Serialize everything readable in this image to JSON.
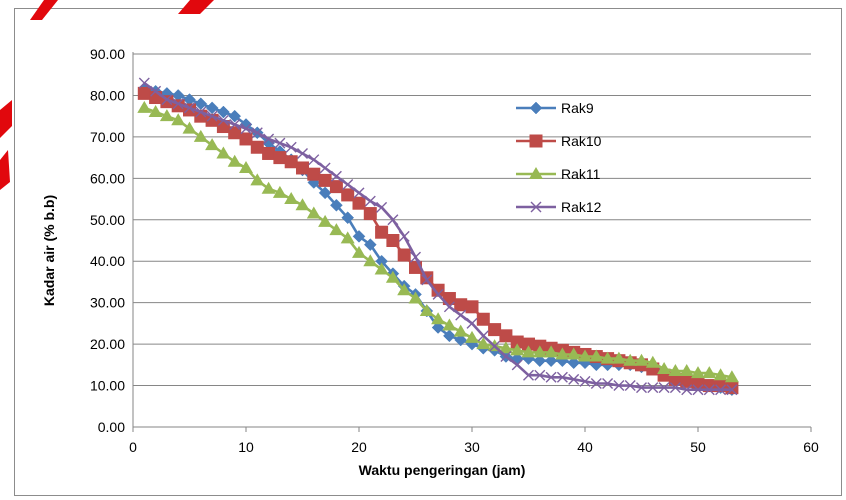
{
  "chart_data": {
    "type": "line",
    "xlabel": "Waktu pengeringan (jam)",
    "ylabel": "Kadar air (% b.b)",
    "xlim": [
      0,
      60
    ],
    "ylim": [
      0,
      90
    ],
    "x_ticks": [
      "0",
      "10",
      "20",
      "30",
      "40",
      "50",
      "60"
    ],
    "y_ticks": [
      "0.00",
      "10.00",
      "20.00",
      "30.00",
      "40.00",
      "50.00",
      "60.00",
      "70.00",
      "80.00",
      "90.00"
    ],
    "grid": "horizontal",
    "legend_position": "right",
    "series": [
      {
        "name": "Rak9",
        "color": "#4a7ebb",
        "marker": "diamond",
        "x": [
          1,
          2,
          3,
          4,
          5,
          6,
          7,
          8,
          9,
          10,
          11,
          12,
          13,
          14,
          15,
          16,
          17,
          18,
          19,
          20,
          21,
          22,
          23,
          24,
          25,
          26,
          27,
          28,
          29,
          30,
          31,
          32,
          33,
          34,
          35,
          36,
          37,
          38,
          39,
          40,
          41,
          42,
          43,
          44,
          45,
          46,
          47,
          48,
          49,
          50,
          51,
          52,
          53
        ],
        "y": [
          81.5,
          81,
          80.5,
          80,
          79,
          78,
          77,
          76,
          75,
          73,
          71,
          68.5,
          66.5,
          64.5,
          62,
          59,
          56.5,
          53.5,
          50.5,
          46,
          44,
          40,
          37,
          34,
          32,
          28,
          24,
          22,
          21,
          20,
          19,
          18.5,
          17,
          16.5,
          16.5,
          16,
          16,
          16,
          15.5,
          15.5,
          15,
          15,
          15,
          15,
          14.5,
          14.5,
          13.5,
          12.5,
          11,
          10.5,
          10,
          9.5,
          9
        ]
      },
      {
        "name": "Rak10",
        "color": "#be4b48",
        "marker": "square",
        "x": [
          1,
          2,
          3,
          4,
          5,
          6,
          7,
          8,
          9,
          10,
          11,
          12,
          13,
          14,
          15,
          16,
          17,
          18,
          19,
          20,
          21,
          22,
          23,
          24,
          25,
          26,
          27,
          28,
          29,
          30,
          31,
          32,
          33,
          34,
          35,
          36,
          37,
          38,
          39,
          40,
          41,
          42,
          43,
          44,
          45,
          46,
          47,
          48,
          49,
          50,
          51,
          52,
          53
        ],
        "y": [
          80.5,
          79.5,
          78.5,
          77.5,
          76.5,
          75,
          74,
          72.5,
          71,
          69.5,
          67.5,
          66,
          65,
          64,
          62.5,
          61,
          59.5,
          58,
          56,
          54,
          51.5,
          47,
          45,
          41.5,
          38.5,
          36,
          33,
          31,
          29.5,
          29,
          26,
          23.5,
          22,
          20.5,
          20,
          19.5,
          19,
          18.5,
          18,
          17.5,
          17,
          16.5,
          16,
          15.5,
          15,
          14,
          12.5,
          11.5,
          11,
          10.5,
          10,
          10,
          9.5
        ]
      },
      {
        "name": "Rak11",
        "color": "#98b954",
        "marker": "triangle",
        "x": [
          1,
          2,
          3,
          4,
          5,
          6,
          7,
          8,
          9,
          10,
          11,
          12,
          13,
          14,
          15,
          16,
          17,
          18,
          19,
          20,
          21,
          22,
          23,
          24,
          25,
          26,
          27,
          28,
          29,
          30,
          31,
          32,
          33,
          34,
          35,
          36,
          37,
          38,
          39,
          40,
          41,
          42,
          43,
          44,
          45,
          46,
          47,
          48,
          49,
          50,
          51,
          52,
          53
        ],
        "y": [
          77,
          76,
          75,
          74,
          72,
          70,
          68,
          66,
          64,
          62.5,
          59.5,
          57.5,
          56.5,
          55,
          53.5,
          51.5,
          49.5,
          47.5,
          45.5,
          42,
          40,
          38,
          36,
          33,
          31,
          28,
          26,
          24.5,
          23,
          21.5,
          20,
          19.5,
          19,
          18.5,
          18,
          18,
          18,
          17.5,
          17.5,
          17,
          17,
          16.5,
          16.5,
          16,
          16,
          15.5,
          14,
          13.5,
          13.5,
          13,
          13,
          12.5,
          12
        ]
      },
      {
        "name": "Rak12",
        "color": "#7d60a0",
        "marker": "x",
        "x": [
          1,
          2,
          3,
          4,
          5,
          6,
          7,
          8,
          9,
          10,
          11,
          12,
          13,
          14,
          15,
          16,
          17,
          18,
          19,
          20,
          21,
          22,
          23,
          24,
          25,
          26,
          27,
          28,
          29,
          30,
          31,
          32,
          33,
          34,
          35,
          36,
          37,
          38,
          39,
          40,
          41,
          42,
          43,
          44,
          45,
          46,
          47,
          48,
          49,
          50,
          51,
          52,
          53
        ],
        "y": [
          83,
          81,
          79,
          78,
          77,
          76,
          75,
          74,
          73,
          72,
          71,
          69.5,
          68.5,
          67.5,
          66,
          64.5,
          62.5,
          60.5,
          58.5,
          56.5,
          54.5,
          53,
          50,
          46,
          41,
          35.5,
          32,
          29,
          27,
          25,
          22,
          19.5,
          17,
          15,
          12.5,
          12.5,
          12,
          12,
          11.5,
          11,
          10.5,
          10.5,
          10,
          10,
          9.5,
          9.5,
          9.5,
          9.5,
          9,
          9,
          9,
          9,
          9
        ]
      }
    ]
  }
}
